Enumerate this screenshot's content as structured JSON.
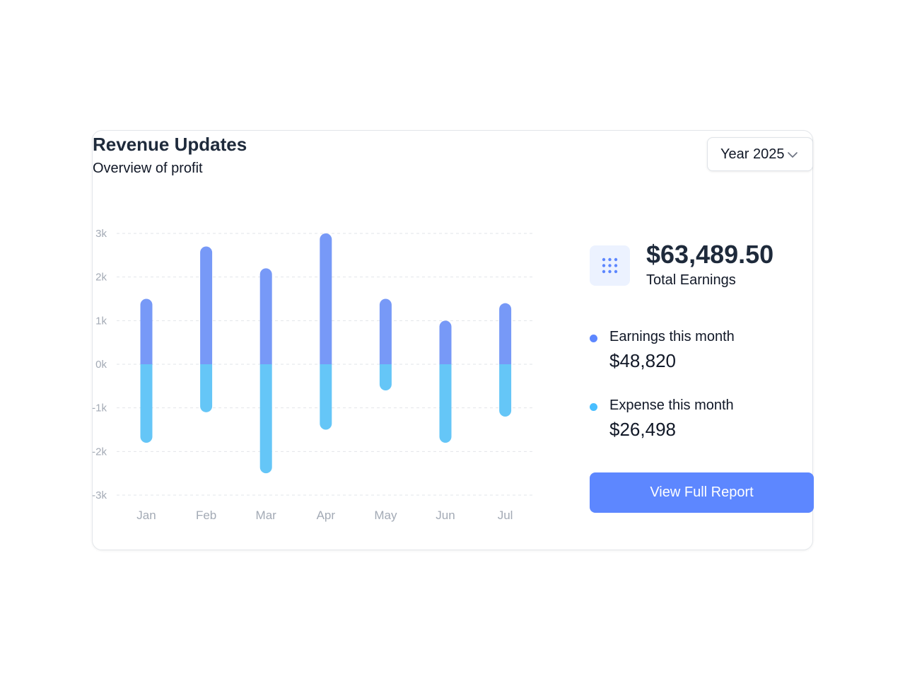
{
  "header": {
    "title": "Revenue Updates",
    "subtitle": "Overview of profit",
    "year_select": "Year 2025"
  },
  "summary": {
    "icon": "grid-dots-icon",
    "total_value": "$63,489.50",
    "total_label": "Total Earnings",
    "earnings_label": "Earnings this month",
    "earnings_value": "$48,820",
    "expense_label": "Expense this month",
    "expense_value": "$26,498",
    "button_label": "View Full Report"
  },
  "colors": {
    "earnings": "#7799f7",
    "expense": "#65c6f7",
    "button": "#5d87ff",
    "icon_bg": "#ecf2ff"
  },
  "chart_data": {
    "type": "bar",
    "categories": [
      "Jan",
      "Feb",
      "Mar",
      "Apr",
      "May",
      "Jun",
      "Jul"
    ],
    "series": [
      {
        "name": "Earnings this month",
        "values": [
          1.5,
          2.7,
          2.2,
          3.0,
          1.5,
          1.0,
          1.4
        ]
      },
      {
        "name": "Expense this month",
        "values": [
          -1.8,
          -1.1,
          -2.5,
          -1.5,
          -0.6,
          -1.8,
          -1.2
        ]
      }
    ],
    "yticks": [
      "3k",
      "2k",
      "1k",
      "0k",
      "-1k",
      "-2k",
      "-3k"
    ],
    "ylim": [
      -3,
      3
    ],
    "grid": true,
    "stacked": true
  }
}
